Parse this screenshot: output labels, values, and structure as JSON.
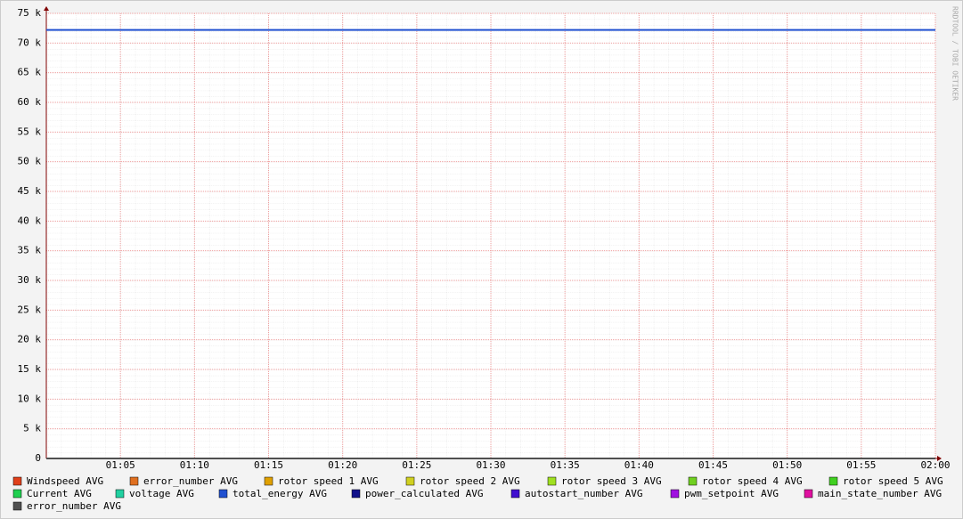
{
  "chart_data": {
    "type": "line",
    "watermark": "RRDTOOL / TOBI OETIKER",
    "x": [
      60,
      120
    ],
    "xlim": [
      60,
      120
    ],
    "xticks": [
      {
        "value": 65,
        "label": "01:05"
      },
      {
        "value": 70,
        "label": "01:10"
      },
      {
        "value": 75,
        "label": "01:15"
      },
      {
        "value": 80,
        "label": "01:20"
      },
      {
        "value": 85,
        "label": "01:25"
      },
      {
        "value": 90,
        "label": "01:30"
      },
      {
        "value": 95,
        "label": "01:35"
      },
      {
        "value": 100,
        "label": "01:40"
      },
      {
        "value": 105,
        "label": "01:45"
      },
      {
        "value": 110,
        "label": "01:50"
      },
      {
        "value": 115,
        "label": "01:55"
      },
      {
        "value": 120,
        "label": "02:00"
      }
    ],
    "ylim": [
      0,
      75000
    ],
    "yticks": [
      0,
      {
        "value": 5000,
        "label": "5 k"
      },
      {
        "value": 10000,
        "label": "10 k"
      },
      {
        "value": 15000,
        "label": "15 k"
      },
      {
        "value": 20000,
        "label": "20 k"
      },
      {
        "value": 25000,
        "label": "25 k"
      },
      {
        "value": 30000,
        "label": "30 k"
      },
      {
        "value": 35000,
        "label": "35 k"
      },
      {
        "value": 40000,
        "label": "40 k"
      },
      {
        "value": 45000,
        "label": "45 k"
      },
      {
        "value": 50000,
        "label": "50 k"
      },
      {
        "value": 55000,
        "label": "55 k"
      },
      {
        "value": 60000,
        "label": "60 k"
      },
      {
        "value": 65000,
        "label": "65 k"
      },
      {
        "value": 70000,
        "label": "70 k"
      },
      {
        "value": 75000,
        "label": "75 k"
      }
    ],
    "grid": true,
    "series": [
      {
        "name": "Windspeed AVG",
        "color": "#e0401a",
        "values": [
          0,
          0
        ]
      },
      {
        "name": "error_number AVG",
        "color": "#e07020",
        "values": [
          0,
          0
        ]
      },
      {
        "name": "rotor speed 1 AVG",
        "color": "#e0a000",
        "values": [
          0,
          0
        ]
      },
      {
        "name": "rotor speed 2 AVG",
        "color": "#d0d020",
        "values": [
          0,
          0
        ]
      },
      {
        "name": "rotor speed 3 AVG",
        "color": "#a0e020",
        "values": [
          0,
          0
        ]
      },
      {
        "name": "rotor speed 4 AVG",
        "color": "#70d020",
        "values": [
          0,
          0
        ]
      },
      {
        "name": "rotor speed 5 AVG",
        "color": "#40d020",
        "values": [
          0,
          0
        ]
      },
      {
        "name": "Current AVG",
        "color": "#20d050",
        "values": [
          0,
          0
        ]
      },
      {
        "name": "voltage AVG",
        "color": "#20d0a0",
        "values": [
          0,
          0
        ]
      },
      {
        "name": "total_energy AVG",
        "color": "#2050d0",
        "values": [
          72200,
          72200
        ]
      },
      {
        "name": "power_calculated AVG",
        "color": "#10108a",
        "values": [
          0,
          0
        ]
      },
      {
        "name": "autostart_number AVG",
        "color": "#4010d0",
        "values": [
          0,
          0
        ]
      },
      {
        "name": "pwm_setpoint AVG",
        "color": "#a010e0",
        "values": [
          0,
          0
        ]
      },
      {
        "name": "main_state_number AVG",
        "color": "#e010a0",
        "values": [
          0,
          0
        ]
      },
      {
        "name": "error_number AVG",
        "color": "#505050",
        "values": [
          0,
          0
        ]
      }
    ]
  }
}
